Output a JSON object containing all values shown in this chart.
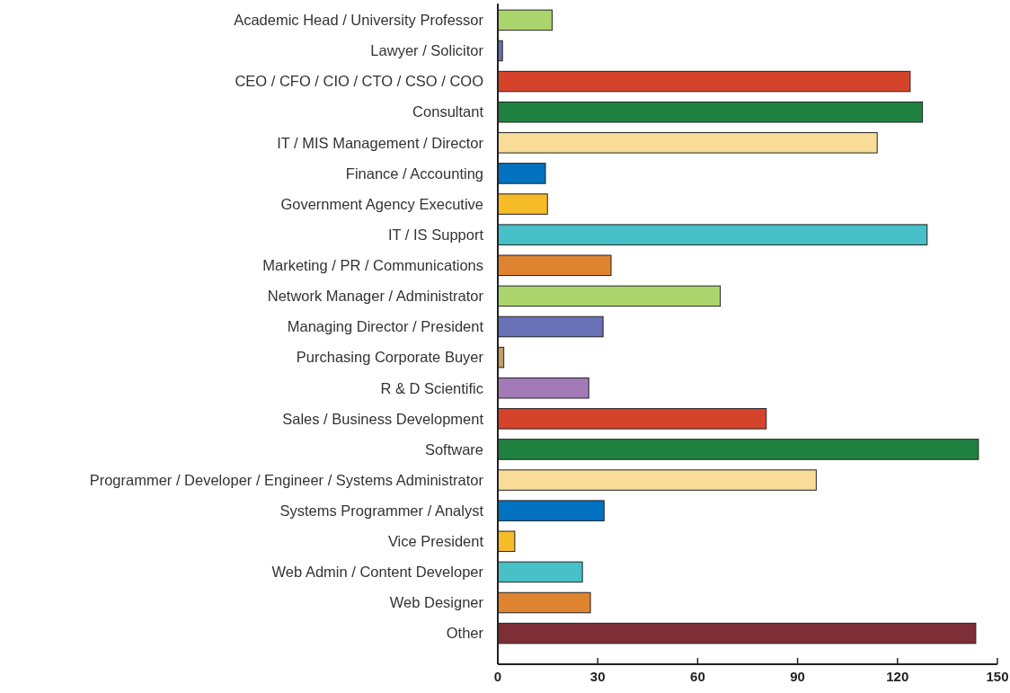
{
  "chart_data": {
    "type": "bar",
    "orientation": "horizontal",
    "categories": [
      "Academic Head / University Professor",
      "Lawyer / Solicitor",
      "CEO / CFO / CIO / CTO / CSO / COO",
      "Consultant",
      "IT / MIS Management / Director",
      "Finance / Accounting",
      "Government Agency Executive",
      "IT / IS Support",
      "Marketing / PR / Communications",
      "Network Manager / Administrator",
      "Managing Director / President",
      "Purchasing Corporate Buyer",
      "R & D Scientific",
      "Sales / Business Development",
      "Software",
      "Programmer / Developer / Engineer / Systems Administrator",
      "Systems Programmer / Analyst",
      "Vice President",
      "Web Admin / Content Developer",
      "Web Designer",
      "Other"
    ],
    "values": [
      16.3,
      1.4,
      123.8,
      127.5,
      113.9,
      14.3,
      14.9,
      128.9,
      34,
      66.8,
      31.6,
      1.8,
      27.3,
      80.6,
      144.3,
      95.6,
      31.9,
      5.1,
      25.4,
      27.8,
      143.5
    ],
    "colors": [
      "#acd46d",
      "#6870b6",
      "#d6432b",
      "#1e8140",
      "#f8dc98",
      "#0072c0",
      "#f6bc28",
      "#48c0c7",
      "#de8430",
      "#acd46d",
      "#6870b6",
      "#c09f5f",
      "#a37ab7",
      "#d6432b",
      "#1e8140",
      "#f8dc98",
      "#0072c0",
      "#f6bc28",
      "#48c0c7",
      "#de8430",
      "#7d2e37"
    ],
    "xlim": [
      0,
      150
    ],
    "xticks": [
      0,
      30,
      60,
      90,
      120,
      150
    ],
    "grid": false
  }
}
